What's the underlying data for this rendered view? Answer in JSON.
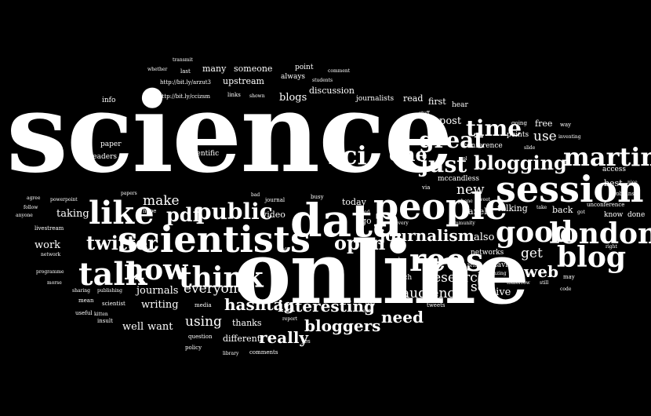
{
  "background": "#000000",
  "text_color": "#ffffff",
  "words": {
    "science": "science",
    "online": "online",
    "data": "data",
    "scientists": "scientists",
    "people": "people",
    "session": "session",
    "like": "like",
    "talk": "talk",
    "now": "now",
    "think": "think",
    "public": "public",
    "rees": "rees",
    "good": "good",
    "london": "london",
    "blog": "blog",
    "martin": "martin",
    "journalism": "journalism",
    "twitter": "twitter",
    "sci": "sci",
    "great": "great",
    "just": "just",
    "time": "time",
    "one": "one",
    "blogging": "blogging",
    "open": "open",
    "pdf": "pdf",
    "make": "make",
    "everyone": "everyone",
    "interesting": "interesting",
    "hashtag": "hashtag",
    "bloggers": "bloggers",
    "really": "really",
    "using": "using",
    "research": "research",
    "audience": "audience",
    "need": "need",
    "web": "web",
    "get": "get",
    "new": "new",
    "also": "also",
    "see": "see",
    "live": "live",
    "work": "work",
    "taking": "taking",
    "writing": "writing",
    "journals": "journals",
    "want": "want",
    "well": "well",
    "thanks": "thanks",
    "different": "different",
    "video": "video",
    "today": "today",
    "go": "go",
    "use": "use",
    "free": "free",
    "post": "post",
    "first": "first",
    "read": "read",
    "blogs": "blogs",
    "discussion": "discussion",
    "upstream": "upstream",
    "someone": "someone",
    "many": "many",
    "point": "point",
    "always": "always",
    "journalists": "journalists",
    "mccandless": "mccandless",
    "conference": "conference",
    "points": "points",
    "scientific": "scientific",
    "readers": "readers",
    "paper": "paper",
    "info": "info",
    "panel": "panel",
    "back": "back",
    "talking": "talking",
    "best": "best",
    "access": "access",
    "know": "know",
    "done": "done",
    "networks": "networks",
    "david": "david",
    "much": "much",
    "etc": "etc",
    "ask": "ask",
    "may": "may",
    "tweets": "tweets",
    "day": "day",
    "yes": "yes",
    "comments": "comments",
    "question": "question",
    "policy": "policy",
    "library": "library",
    "media": "media",
    "report": "report",
    "scientist": "scientist",
    "insult": "insult",
    "useful": "useful",
    "mean": "mean",
    "sharing": "sharing",
    "publishing": "publishing",
    "kitten": "kitten",
    "morse": "morse",
    "programme": "programme",
    "network": "network",
    "livestream": "livestream",
    "anyone": "anyone",
    "follow": "follow",
    "agree": "agree",
    "powerpoint": "powerpoint",
    "papers": "papers",
    "hope": "hope",
    "bad": "bad",
    "journal": "journal",
    "busy": "busy",
    "link": "link",
    "via": "via",
    "every": "every",
    "community": "community",
    "phone": "phone",
    "tweet": "tweet",
    "british": "british",
    "amazing": "amazing",
    "tomorrow": "tomorrow",
    "still": "still",
    "code": "code",
    "right": "right",
    "robbins": "robbins",
    "nice": "nice",
    "unconference": "unconference",
    "got": "got",
    "take": "take",
    "ppl": "ppl",
    "slide": "slide",
    "way": "way",
    "inventing": "inventing",
    "going": "going",
    "hear": "hear",
    "stuff": "stuff",
    "comment": "comment",
    "students": "students",
    "shown": "shown",
    "links": "links",
    "last": "last",
    "transmit": "transmit",
    "whether": "whether",
    "url1": "http://bit.ly/arzut3",
    "url2": "http://bit.ly/ccizsm",
    "onto": "onto",
    "ed": "ed"
  }
}
